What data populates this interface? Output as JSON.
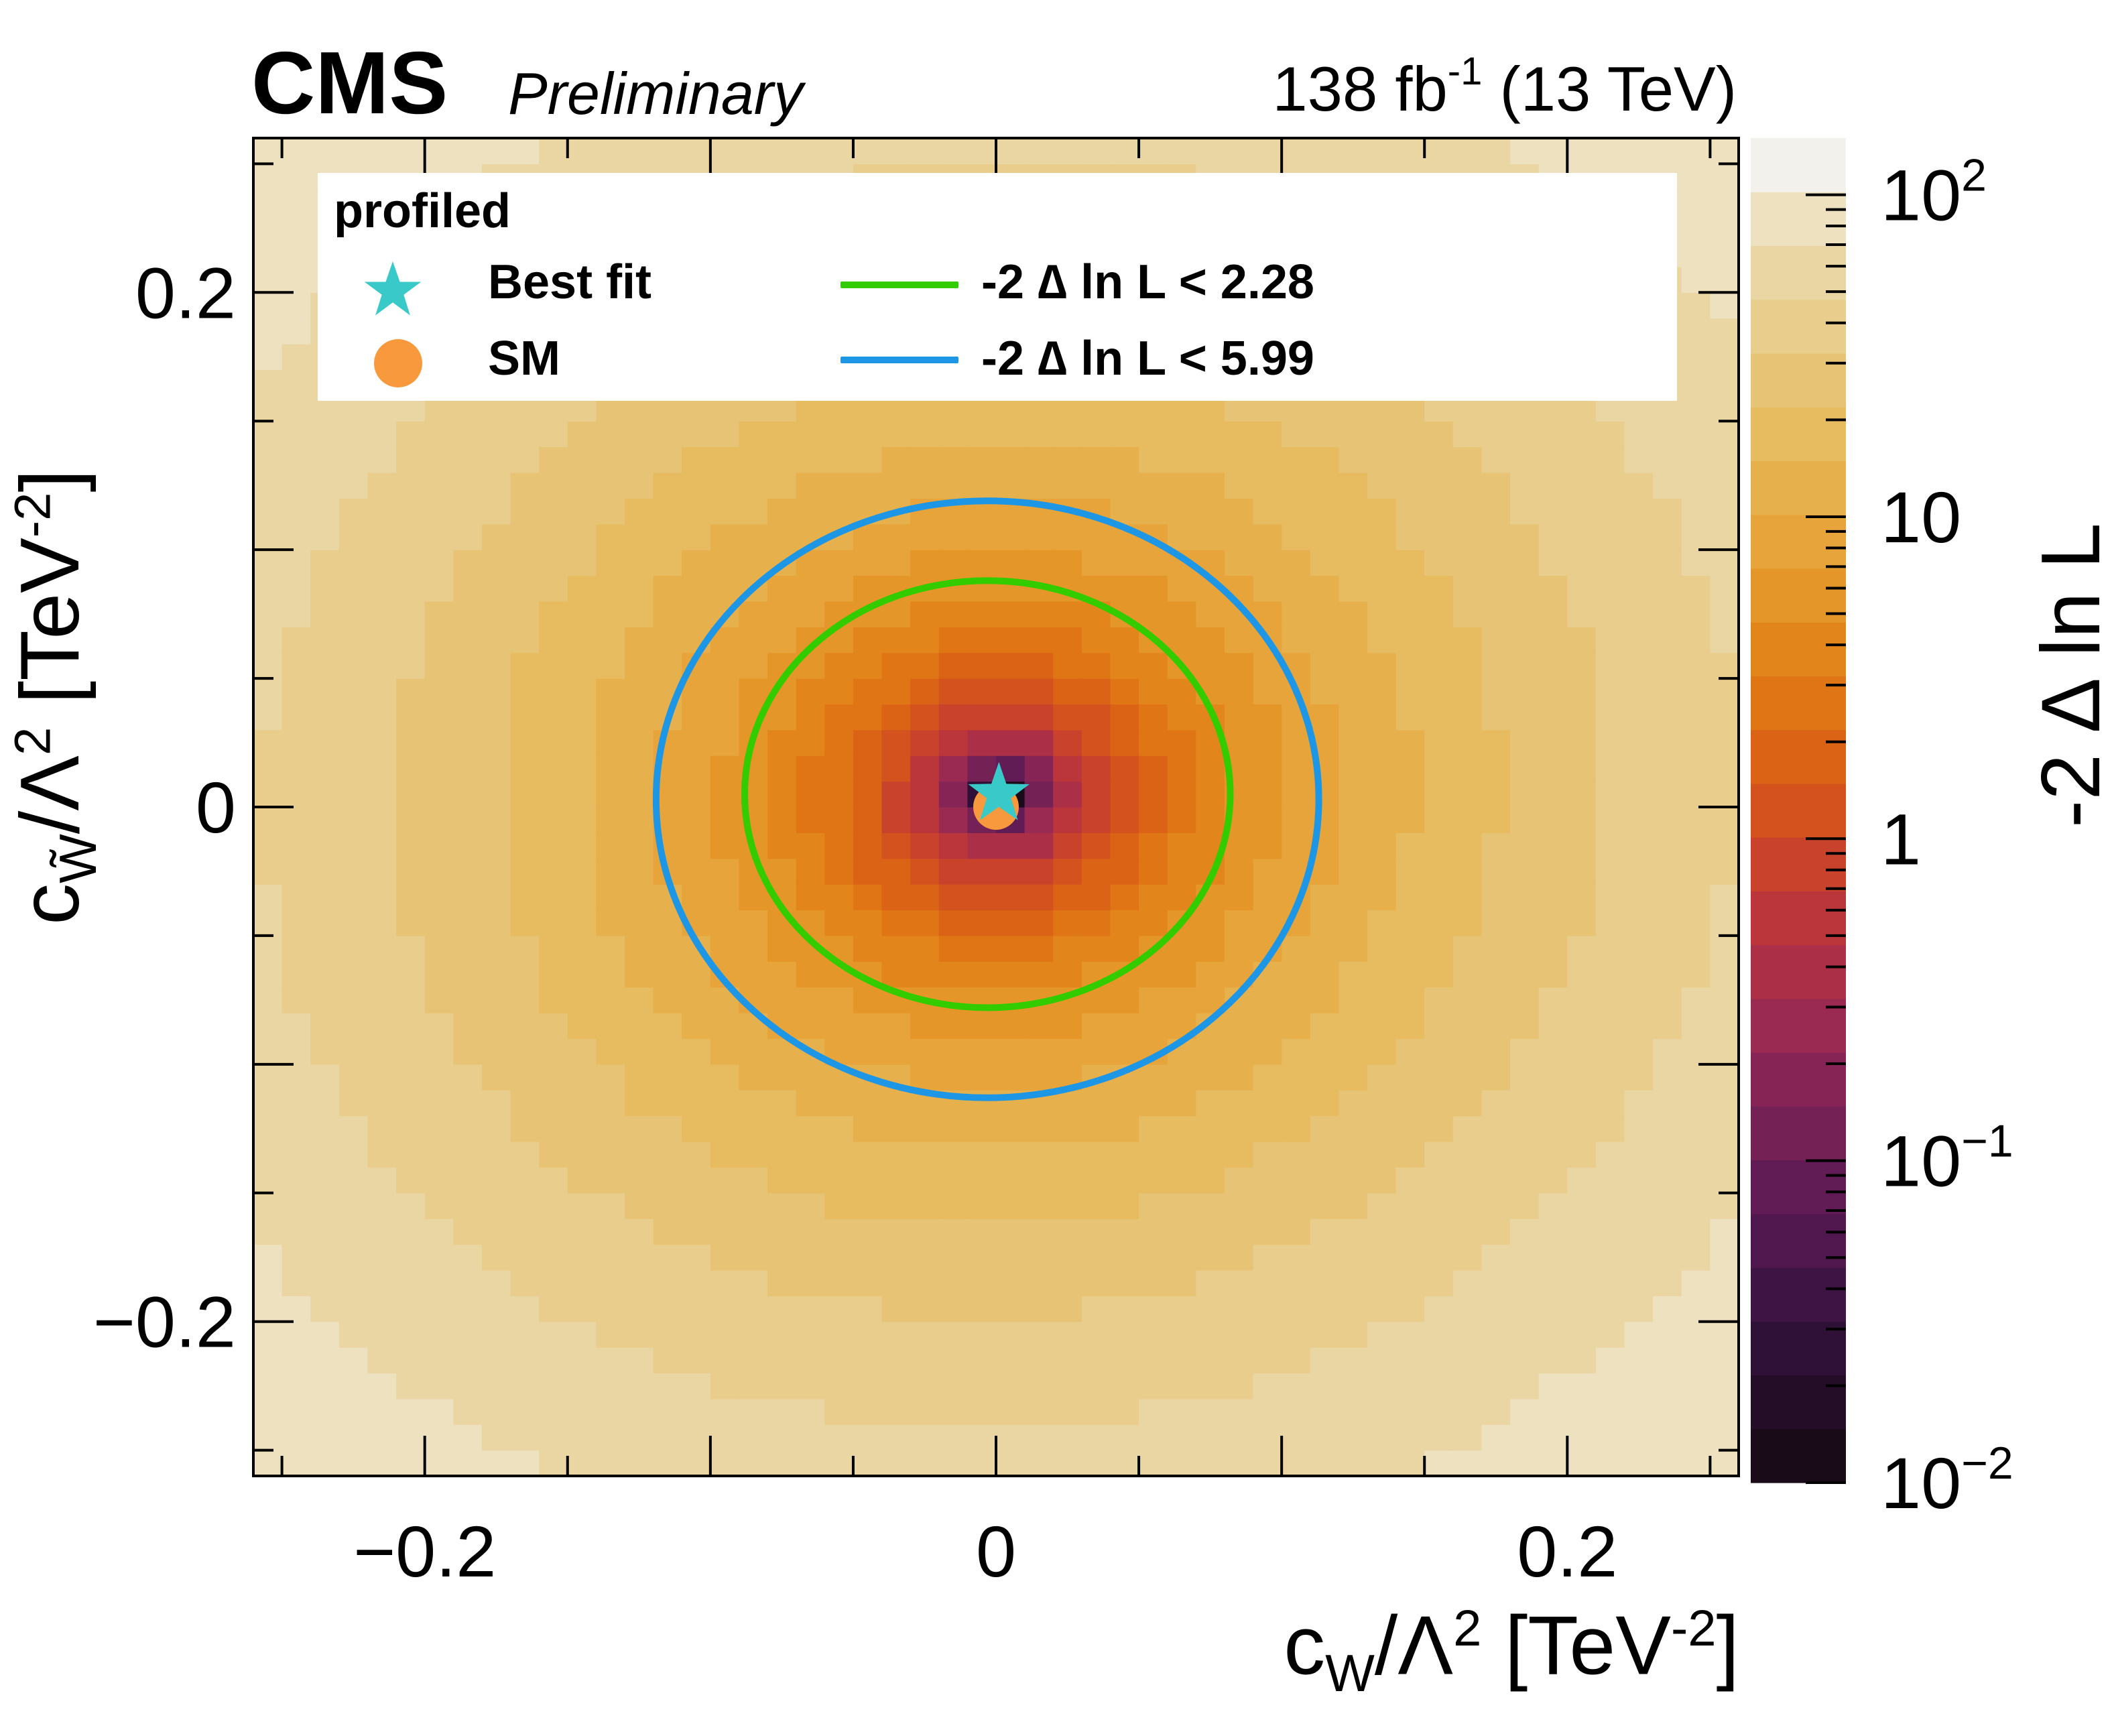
{
  "header": {
    "experiment": "CMS",
    "status": "Preliminary",
    "lumi_value": "138 fb",
    "lumi_exp": "-1",
    "energy": " (13 TeV)"
  },
  "legend": {
    "title": "profiled",
    "best_fit_label": "Best fit",
    "sm_label": "SM",
    "contour1_label": "-2  ∆ ln L < 2.28",
    "contour2_label": "-2  ∆ ln L < 5.99"
  },
  "axes": {
    "x_title_main": "c",
    "x_title_sub": "W",
    "x_title_rest": "/Λ",
    "x_title_pow": "2",
    "x_title_unit": " [TeV",
    "x_title_unit_exp": "-2",
    "x_title_close": "]",
    "y_title_main": "c",
    "y_title_sub": "W̃",
    "y_title_rest": "/Λ",
    "y_title_pow": "2",
    "y_title_unit": " [TeV",
    "y_title_unit_exp": "-2",
    "y_title_close": "]",
    "z_title": "-2 ∆ ln L"
  },
  "chart_data": {
    "type": "heatmap",
    "title": "",
    "xlabel": "c_W/Λ^2 [TeV^-2]",
    "ylabel": "c_W̃/Λ^2 [TeV^-2]",
    "zlabel": "-2 ∆ ln L",
    "xlim": [
      -0.26,
      0.26
    ],
    "ylim": [
      -0.26,
      0.26
    ],
    "zlim": [
      0.01,
      150
    ],
    "z_scale": "log",
    "x_ticks": [
      -0.2,
      0,
      0.2
    ],
    "x_tick_labels": [
      "−0.2",
      "0",
      "0.2"
    ],
    "y_ticks": [
      -0.2,
      0,
      0.2
    ],
    "y_tick_labels": [
      "−0.2",
      "0",
      "0.2"
    ],
    "z_tick_labels": [
      {
        "base": "10",
        "exp": "2",
        "value": 100
      },
      {
        "base": "10",
        "exp": "",
        "value": 10
      },
      {
        "base": "1",
        "exp": "",
        "value": 1
      },
      {
        "base": "10",
        "exp": "−1",
        "value": 0.1
      },
      {
        "base": "10",
        "exp": "−2",
        "value": 0.01
      }
    ],
    "nll_model": {
      "description": "quadratic",
      "a_x": 710,
      "a_y": 780,
      "cross": -40,
      "bin_width": 0.01
    },
    "best_fit": {
      "x": 0.001,
      "y": 0.005,
      "color": "#3ac9c9",
      "marker": "star"
    },
    "sm": {
      "x": 0.0,
      "y": 0.0,
      "color": "#f7993c",
      "marker": "circle"
    },
    "contours": [
      {
        "label": "-2 ∆ ln L < 2.28",
        "level": 2.28,
        "color": "#33cc00",
        "center": [
          -0.003,
          0.005
        ],
        "rx": 0.085,
        "ry": 0.083
      },
      {
        "label": "-2 ∆ ln L < 5.99",
        "level": 5.99,
        "color": "#1e96e6",
        "center": [
          -0.003,
          0.003
        ],
        "rx": 0.116,
        "ry": 0.116
      }
    ],
    "palette": [
      "#1a0b19",
      "#240d27",
      "#2f1037",
      "#3e1444",
      "#51184f",
      "#611c55",
      "#742155",
      "#862455",
      "#9b2a52",
      "#ab2f46",
      "#bb363a",
      "#c9432c",
      "#d4521e",
      "#db6316",
      "#e07516",
      "#e2861c",
      "#e49629",
      "#e6a43a",
      "#e6b04d",
      "#e7bb60",
      "#e7c475",
      "#e8cd8c",
      "#ead6a3",
      "#ede1bf",
      "#f2f1ec"
    ],
    "grid": false,
    "legend_position": "top"
  }
}
